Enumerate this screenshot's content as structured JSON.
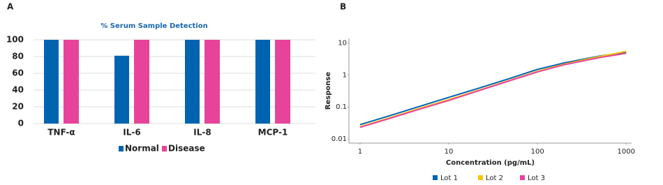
{
  "chart_data": [
    {
      "type": "bar",
      "panel": "A",
      "title": "% Serum Sample Detection",
      "categories": [
        "TNF-α",
        "IL-6",
        "IL-8",
        "MCP-1"
      ],
      "series": [
        {
          "name": "Normal",
          "color": "#0063b0",
          "values": [
            100,
            81,
            100,
            100
          ]
        },
        {
          "name": "Disease",
          "color": "#e8439a",
          "values": [
            100,
            100,
            100,
            100
          ]
        }
      ],
      "ylim": [
        0,
        100
      ],
      "yticks": [
        0,
        20,
        40,
        60,
        80,
        100
      ],
      "grid": true,
      "legend": "bottom"
    },
    {
      "type": "line",
      "panel": "B",
      "x_label": "Concentration (pg/mL)",
      "y_label": "Response",
      "x": [
        1,
        2,
        5,
        10,
        20,
        50,
        100,
        200,
        500,
        1000
      ],
      "series": [
        {
          "name": "Lot 1",
          "color": "#0063b0",
          "values": [
            0.028,
            0.05,
            0.11,
            0.2,
            0.36,
            0.8,
            1.5,
            2.4,
            3.9,
            5.2
          ]
        },
        {
          "name": "Lot 2",
          "color": "#f5c400",
          "values": [
            0.024,
            0.043,
            0.095,
            0.17,
            0.31,
            0.7,
            1.3,
            2.2,
            3.8,
            5.5
          ]
        },
        {
          "name": "Lot 3",
          "color": "#e8439a",
          "values": [
            0.023,
            0.041,
            0.09,
            0.16,
            0.3,
            0.68,
            1.25,
            2.1,
            3.5,
            4.8
          ]
        }
      ],
      "log_x": true,
      "log_y": true,
      "xlim": [
        0.75,
        1150
      ],
      "xticks": [
        1,
        10,
        100,
        1000
      ],
      "ylim": [
        0.0074,
        14
      ],
      "yticks": [
        0.01,
        0.1,
        1,
        10
      ],
      "grid": false,
      "legend": "bottom"
    }
  ]
}
